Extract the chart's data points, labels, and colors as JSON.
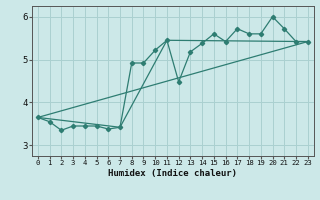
{
  "x": [
    0,
    1,
    2,
    3,
    4,
    5,
    6,
    7,
    8,
    9,
    10,
    11,
    12,
    13,
    14,
    15,
    16,
    17,
    18,
    19,
    20,
    21,
    22,
    23
  ],
  "y_main": [
    3.65,
    3.55,
    3.35,
    3.45,
    3.45,
    3.45,
    3.38,
    3.42,
    4.92,
    4.92,
    5.22,
    5.45,
    4.48,
    5.18,
    5.38,
    5.6,
    5.42,
    5.72,
    5.6,
    5.6,
    6.0,
    5.72,
    5.42,
    5.42
  ],
  "y_line1_x": [
    0,
    23
  ],
  "y_line1_y": [
    3.65,
    5.42
  ],
  "y_line2_x": [
    0,
    7,
    11,
    23
  ],
  "y_line2_y": [
    3.65,
    3.42,
    5.45,
    5.42
  ],
  "color": "#2e7d72",
  "bg_color": "#cce8e8",
  "grid_color": "#aad0d0",
  "xlabel": "Humidex (Indice chaleur)",
  "xlim": [
    -0.5,
    23.5
  ],
  "ylim": [
    2.75,
    6.25
  ],
  "yticks": [
    3,
    4,
    5,
    6
  ],
  "xticks": [
    0,
    1,
    2,
    3,
    4,
    5,
    6,
    7,
    8,
    9,
    10,
    11,
    12,
    13,
    14,
    15,
    16,
    17,
    18,
    19,
    20,
    21,
    22,
    23
  ]
}
